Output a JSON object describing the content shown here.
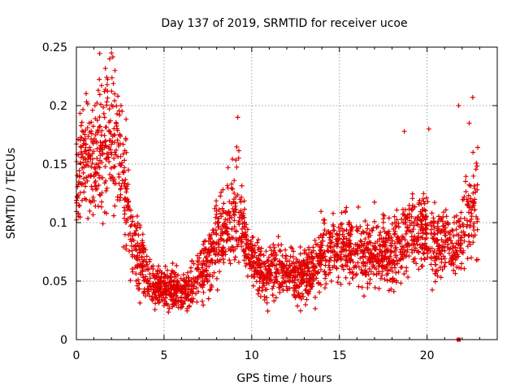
{
  "chart_data": {
    "type": "scatter",
    "title": "Day 137 of 2019, SRMTID for receiver ucoe",
    "xlabel": "GPS time / hours",
    "ylabel": "SRMTID / TECUs",
    "xlim": [
      0,
      24
    ],
    "ylim": [
      0,
      0.25
    ],
    "xticks": [
      0,
      5,
      10,
      15,
      20
    ],
    "yticks": [
      0,
      0.05,
      0.1,
      0.15,
      0.2,
      0.25
    ],
    "xtick_labels": [
      "0",
      "5",
      "10",
      "15",
      "20"
    ],
    "ytick_labels": [
      "0",
      "0.05",
      "0.1",
      "0.15",
      "0.2",
      "0.25"
    ],
    "grid": true,
    "marker": "+",
    "color": "#e00000",
    "envelope": {
      "description": "approximate mean SRMTID trend of the dense scatter (hours, TECU)",
      "x": [
        0.0,
        0.3,
        0.8,
        1.2,
        1.6,
        2.0,
        2.4,
        2.8,
        3.2,
        3.6,
        4.0,
        4.5,
        5.0,
        5.5,
        6.0,
        6.5,
        7.0,
        7.5,
        8.0,
        8.5,
        9.0,
        9.3,
        9.6,
        10.0,
        10.5,
        11.0,
        11.5,
        12.0,
        12.5,
        13.0,
        13.5,
        14.0,
        14.5,
        15.0,
        15.5,
        16.0,
        16.5,
        17.0,
        17.5,
        18.0,
        18.5,
        19.0,
        19.5,
        20.0,
        20.5,
        21.0,
        21.5,
        22.0,
        22.5,
        22.9
      ],
      "y": [
        0.13,
        0.16,
        0.15,
        0.16,
        0.17,
        0.18,
        0.16,
        0.13,
        0.08,
        0.07,
        0.055,
        0.045,
        0.045,
        0.045,
        0.04,
        0.045,
        0.055,
        0.065,
        0.085,
        0.095,
        0.11,
        0.1,
        0.085,
        0.07,
        0.06,
        0.055,
        0.06,
        0.06,
        0.055,
        0.055,
        0.06,
        0.07,
        0.075,
        0.08,
        0.08,
        0.075,
        0.07,
        0.075,
        0.075,
        0.07,
        0.08,
        0.09,
        0.095,
        0.09,
        0.08,
        0.085,
        0.075,
        0.09,
        0.11,
        0.12
      ],
      "spread": [
        0.03,
        0.03,
        0.035,
        0.04,
        0.04,
        0.04,
        0.04,
        0.035,
        0.02,
        0.02,
        0.015,
        0.012,
        0.012,
        0.012,
        0.012,
        0.015,
        0.015,
        0.02,
        0.025,
        0.025,
        0.035,
        0.03,
        0.02,
        0.015,
        0.015,
        0.015,
        0.015,
        0.015,
        0.015,
        0.015,
        0.018,
        0.02,
        0.02,
        0.02,
        0.02,
        0.02,
        0.02,
        0.02,
        0.02,
        0.02,
        0.025,
        0.025,
        0.025,
        0.025,
        0.025,
        0.025,
        0.02,
        0.025,
        0.03,
        0.03
      ]
    },
    "highlight_points": [
      {
        "x": 2.0,
        "y": 0.245
      },
      {
        "x": 1.9,
        "y": 0.24
      },
      {
        "x": 2.2,
        "y": 0.23
      },
      {
        "x": 9.2,
        "y": 0.19
      },
      {
        "x": 18.7,
        "y": 0.178
      },
      {
        "x": 20.1,
        "y": 0.18
      },
      {
        "x": 21.8,
        "y": 0.2
      },
      {
        "x": 22.6,
        "y": 0.207
      },
      {
        "x": 22.4,
        "y": 0.185
      },
      {
        "x": 21.8,
        "y": 0.0
      }
    ]
  }
}
